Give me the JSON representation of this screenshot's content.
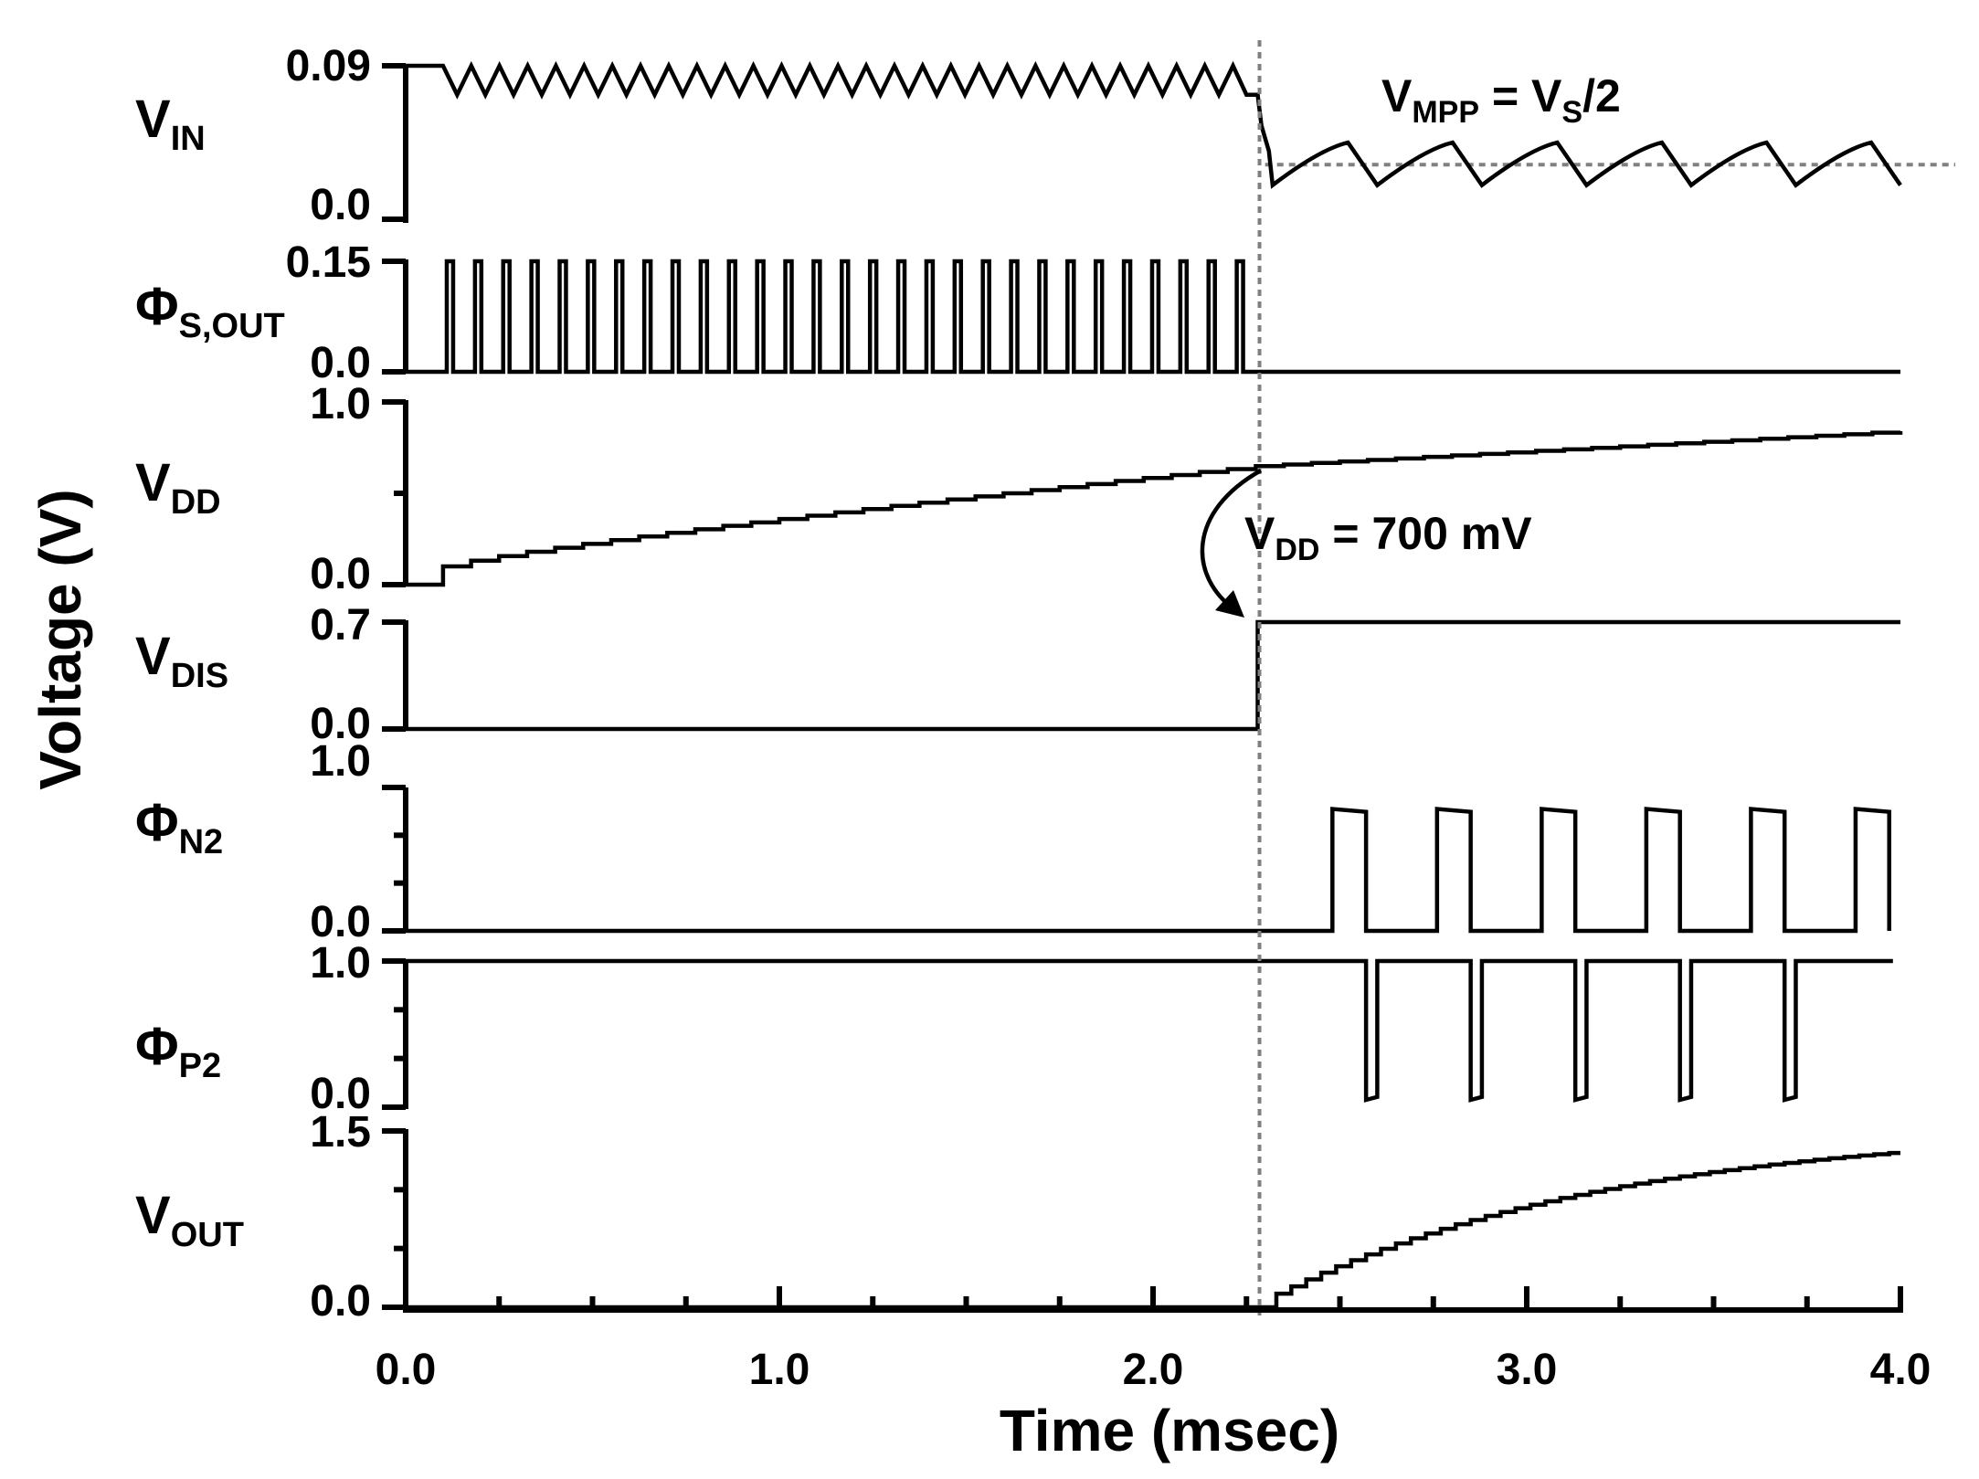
{
  "chart_data": {
    "type": "line",
    "title": "",
    "xlabel": "Time (msec)",
    "ylabel": "Voltage (V)",
    "xlim": [
      0.0,
      4.0
    ],
    "xticks": [
      "0.0",
      "1.0",
      "2.0",
      "3.0",
      "4.0"
    ],
    "marker_time": 2.28,
    "channels": [
      {
        "id": "vin",
        "name": "V",
        "sub": "IN",
        "ylim": [
          0.0,
          0.09
        ],
        "tick_labels": [
          "0.09",
          "0.0"
        ],
        "segments": [
          {
            "kind": "ripple",
            "t0": 0.1,
            "t1": 2.25,
            "period": 0.0755,
            "low": 0.073,
            "high": 0.09
          },
          {
            "kind": "sawtooth",
            "t0": 2.32,
            "t1": 4.0,
            "period": 0.28,
            "low": 0.02,
            "high": 0.045
          }
        ],
        "reference_level": 0.032
      },
      {
        "id": "phi_s_out",
        "name": "Φ",
        "sub": "S,OUT",
        "ylim": [
          0.0,
          0.15
        ],
        "tick_labels": [
          "0.15",
          "0.0"
        ],
        "pulse_train": {
          "t_start": 0.11,
          "t_end": 2.27,
          "period": 0.0755,
          "width": 0.017,
          "high": 0.15,
          "low": 0.0
        }
      },
      {
        "id": "vdd",
        "name": "V",
        "sub": "DD",
        "ylim": [
          0.0,
          1.0
        ],
        "tick_labels": [
          "1.0",
          "0.0"
        ],
        "staircase": {
          "t_start": 0.1,
          "t_end": 4.0,
          "v_start": 0.1,
          "v_at_marker": 0.7,
          "v_end": 0.84
        }
      },
      {
        "id": "vdis",
        "name": "V",
        "sub": "DIS",
        "ylim": [
          0.0,
          0.7
        ],
        "tick_labels": [
          "0.7",
          "0.0"
        ],
        "step": {
          "t": 2.28,
          "low": 0.0,
          "high": 0.7
        }
      },
      {
        "id": "phi_n2",
        "name": "Φ",
        "sub": "N2",
        "ylim": [
          0.0,
          1.0
        ],
        "tick_labels": [
          "1.0",
          "0.0"
        ],
        "pulses": [
          {
            "t0": 2.48,
            "t1": 2.57
          },
          {
            "t0": 2.76,
            "t1": 2.85
          },
          {
            "t0": 3.04,
            "t1": 3.13
          },
          {
            "t0": 3.32,
            "t1": 3.41
          },
          {
            "t0": 3.6,
            "t1": 3.69
          },
          {
            "t0": 3.88,
            "t1": 3.97
          }
        ],
        "high": 0.85,
        "low": 0.0
      },
      {
        "id": "phi_p2",
        "name": "Φ",
        "sub": "P2",
        "ylim": [
          0.0,
          1.0
        ],
        "tick_labels": [
          "1.0",
          "0.0"
        ],
        "dips": [
          {
            "t0": 2.57,
            "t1": 2.6
          },
          {
            "t0": 2.85,
            "t1": 2.88
          },
          {
            "t0": 3.13,
            "t1": 3.16
          },
          {
            "t0": 3.41,
            "t1": 3.44
          },
          {
            "t0": 3.69,
            "t1": 3.72
          }
        ],
        "high": 1.0,
        "low": 0.05
      },
      {
        "id": "vout",
        "name": "V",
        "sub": "OUT",
        "ylim": [
          0.0,
          1.5
        ],
        "tick_labels": [
          "1.5",
          "0.0"
        ],
        "charging": {
          "t_start": 2.32,
          "t_end": 4.0,
          "v_first": 0.1,
          "v_end": 1.32
        }
      }
    ],
    "annotations": [
      {
        "id": "vmpp",
        "parts": [
          "V",
          "MPP",
          " = V",
          "S",
          "/2"
        ]
      },
      {
        "id": "vdd700",
        "parts": [
          "V",
          "DD",
          " = 700 mV"
        ]
      }
    ]
  }
}
